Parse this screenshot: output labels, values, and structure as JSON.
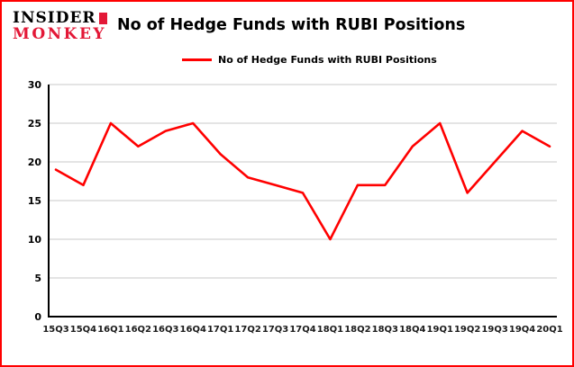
{
  "logo": {
    "line1": "INSIDER",
    "line2": "MONKEY"
  },
  "title": "No of Hedge Funds with RUBI Positions",
  "legend": {
    "label": "No of Hedge Funds with RUBI Positions"
  },
  "colors": {
    "border": "#ff0000",
    "line": "#ff0000",
    "logo_red": "#e31837",
    "grid": "#c9c9c9",
    "axis": "#000000"
  },
  "chart_data": {
    "type": "line",
    "title": "No of Hedge Funds with RUBI Positions",
    "categories": [
      "15Q3",
      "15Q4",
      "16Q1",
      "16Q2",
      "16Q3",
      "16Q4",
      "17Q1",
      "17Q2",
      "17Q3",
      "17Q4",
      "18Q1",
      "18Q2",
      "18Q3",
      "18Q4",
      "19Q1",
      "19Q2",
      "19Q3",
      "19Q4",
      "20Q1"
    ],
    "series": [
      {
        "name": "No of Hedge Funds with RUBI Positions",
        "color": "#ff0000",
        "values": [
          19,
          17,
          25,
          22,
          24,
          25,
          21,
          18,
          17,
          16,
          10,
          17,
          17,
          22,
          25,
          16,
          20,
          24,
          22
        ]
      }
    ],
    "xlabel": "",
    "ylabel": "",
    "ylim": [
      0,
      30
    ],
    "yticks": [
      0,
      5,
      10,
      15,
      20,
      25,
      30
    ],
    "grid": true,
    "legend_position": "top"
  }
}
